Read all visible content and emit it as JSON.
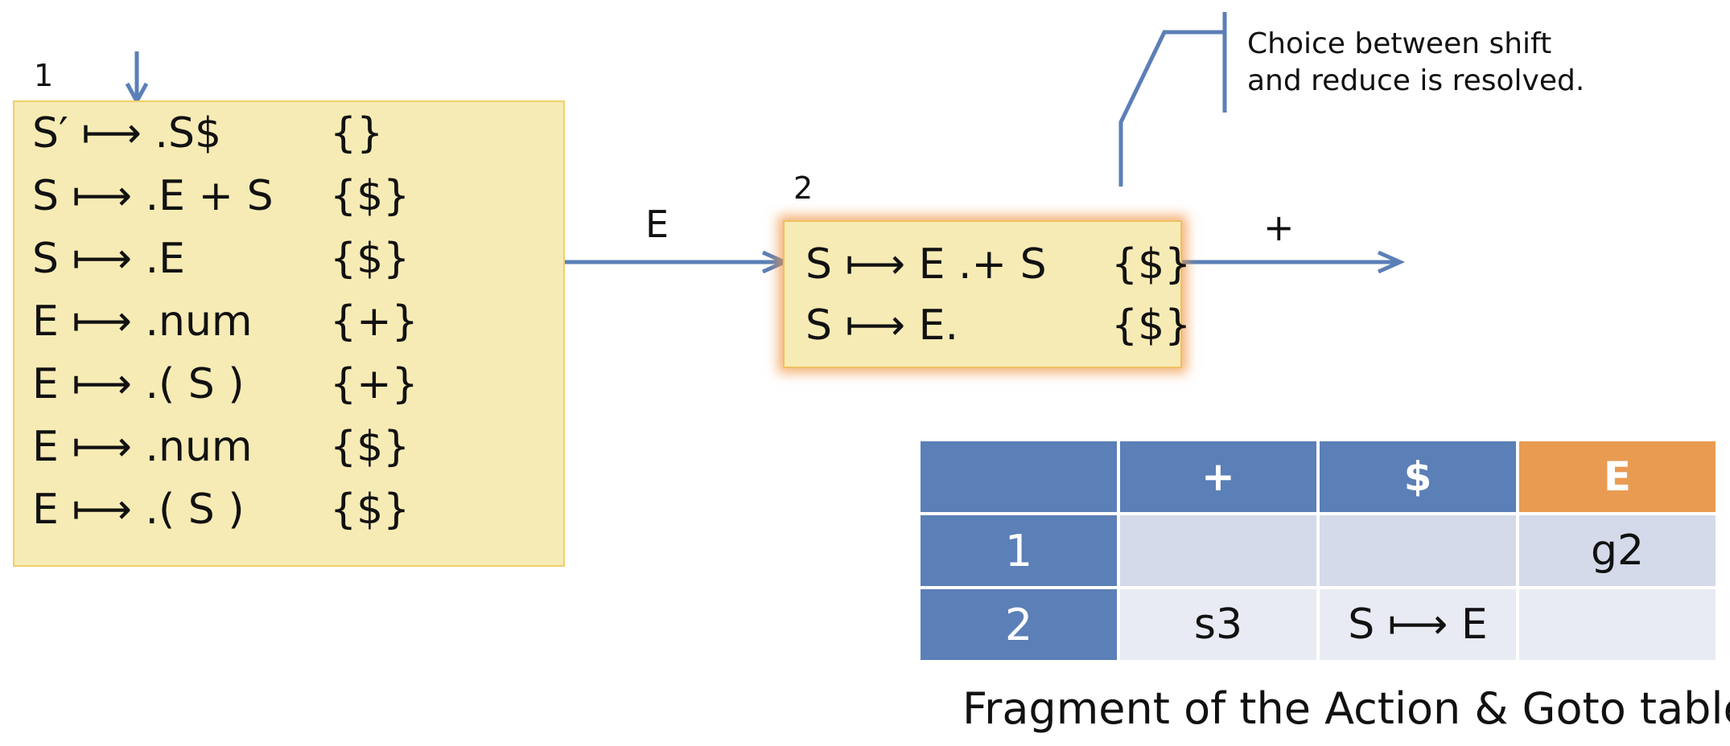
{
  "state1": {
    "label": "1",
    "items": [
      {
        "prod": "S′ ⟼ .S$",
        "la": "{}"
      },
      {
        "prod": "S ⟼ .E + S",
        "la": "{$}"
      },
      {
        "prod": "S ⟼ .E",
        "la": "{$}"
      },
      {
        "prod": "E ⟼ .num",
        "la": "{+}"
      },
      {
        "prod": "E ⟼ .( S )",
        "la": "{+}"
      },
      {
        "prod": "E ⟼ .num",
        "la": "{$}"
      },
      {
        "prod": "E ⟼ .( S )",
        "la": "{$}"
      }
    ]
  },
  "state2": {
    "label": "2",
    "items": [
      {
        "prod": "S ⟼ E .+ S",
        "la": "{$}"
      },
      {
        "prod": "S ⟼ E.",
        "la": "{$}"
      }
    ]
  },
  "edges": {
    "e_label": "E",
    "plus_label": "+"
  },
  "callout": {
    "line1": "Choice between shift",
    "line2": "and reduce is resolved."
  },
  "table": {
    "headers": [
      "",
      "+",
      "$",
      "E"
    ],
    "rows": [
      {
        "state": "1",
        "plus": "",
        "dollar": "",
        "goto_e": "g2"
      },
      {
        "state": "2",
        "plus": "s3",
        "dollar": "S ⟼ E",
        "goto_e": ""
      }
    ]
  },
  "caption": "Fragment of the Action & Goto tables",
  "colors": {
    "arrow": "#5b7fb7",
    "state_fill": "#f7ebb5",
    "state_border": "#efcf6a",
    "header_blue": "#5b7fb7",
    "header_orange": "#e99b52",
    "cell_light": "#d4dae9",
    "cell_lighter": "#e8ebf3"
  }
}
